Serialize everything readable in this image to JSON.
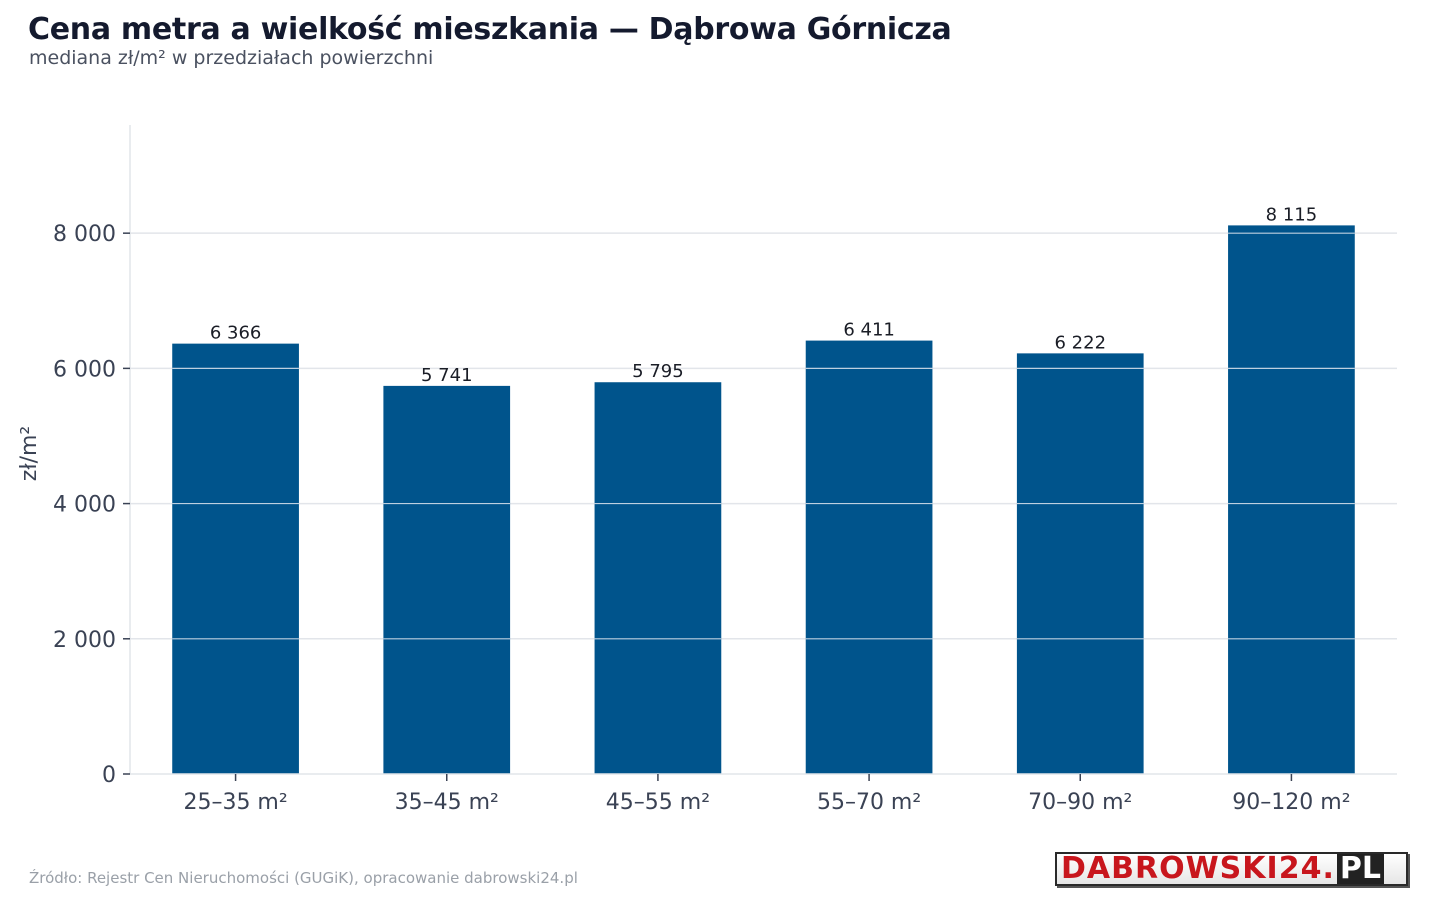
{
  "chart_data": {
    "type": "bar",
    "title": "Cena metra a wielkość mieszkania — Dąbrowa Górnicza",
    "subtitle": "mediana zł/m² w przedziałach powierzchni",
    "ylabel": "zł/m²",
    "xlabel": "",
    "categories": [
      "25–35 m²",
      "35–45 m²",
      "45–55 m²",
      "55–70 m²",
      "70–90 m²",
      "90–120 m²"
    ],
    "values": [
      6366,
      5741,
      5795,
      6411,
      6222,
      8115
    ],
    "value_labels": [
      "6 366",
      "5 741",
      "5 795",
      "6 411",
      "6 222",
      "8 115"
    ],
    "ylim": [
      0,
      9600
    ],
    "yticks": [
      0,
      2000,
      4000,
      6000,
      8000
    ],
    "ytick_labels": [
      "0",
      "2 000",
      "4 000",
      "6 000",
      "8 000"
    ],
    "grid": true,
    "bar_color": "#00548c",
    "grid_color": "#e2e5ea"
  },
  "footer": {
    "source": "Źródło: Rejestr Cen Nieruchomości (GUGiK), opracowanie dabrowski24.pl",
    "logo_brand": "DABROWSKI24.",
    "logo_tld": "PL"
  }
}
